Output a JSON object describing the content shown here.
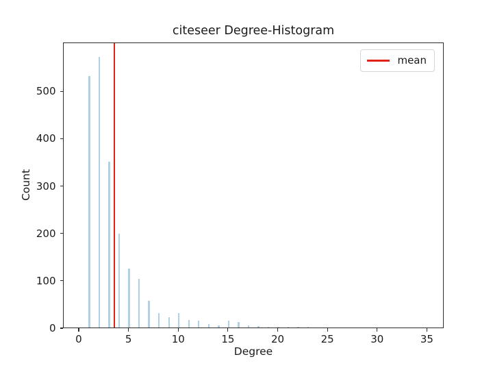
{
  "colors": {
    "bar": "#aed1e6",
    "mean_line": "#e02116",
    "spine": "#2b2b2b",
    "text": "#1a1a1a",
    "background": "#ffffff",
    "legend_border": "#d6d6d6"
  },
  "legend": {
    "position": "upper right",
    "items": [
      {
        "label": "mean",
        "color": "#e02116",
        "glyph": "line"
      }
    ]
  },
  "axes": {
    "x_ticks": [
      0,
      5,
      10,
      15,
      20,
      25,
      30,
      35
    ],
    "y_ticks": [
      0,
      100,
      200,
      300,
      400,
      500
    ],
    "xlim": [
      -1.58,
      36.69
    ],
    "ylim": [
      0,
      603
    ]
  },
  "chart_data": {
    "type": "bar",
    "title": "citeseer Degree-Histogram",
    "xlabel": "Degree",
    "ylabel": "Count",
    "x": [
      1,
      2,
      3,
      4,
      5,
      6,
      7,
      8,
      9,
      10,
      11,
      12,
      13,
      14,
      15,
      16,
      17,
      18,
      19,
      20,
      21,
      22,
      23
    ],
    "values": [
      530,
      571,
      350,
      198,
      125,
      103,
      57,
      30,
      22,
      30,
      16,
      15,
      7,
      5,
      14,
      11,
      4,
      3,
      2,
      2,
      2,
      1,
      2
    ],
    "bar_width_data": 0.16,
    "annotations": [
      {
        "type": "vline",
        "x": 3.5,
        "label": "mean",
        "color": "#e02116"
      }
    ],
    "xlim": [
      -1.58,
      36.69
    ],
    "ylim": [
      0,
      603
    ],
    "grid": false,
    "legend_position": "upper right"
  }
}
